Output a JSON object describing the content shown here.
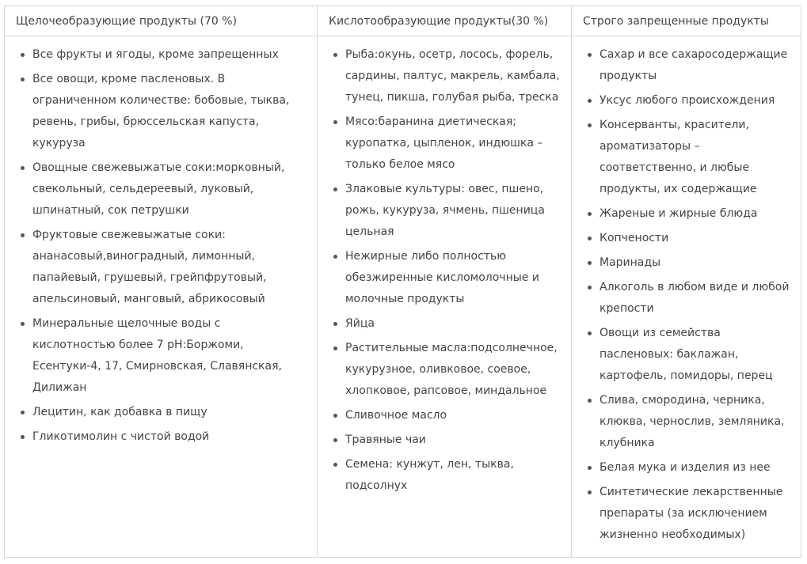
{
  "table": {
    "headers": [
      "Щелочеобразующие продукты (70 %)",
      "Кислотообразующие продукты(30 %)",
      "Строго запрещенные продукты"
    ],
    "columns": [
      [
        "Все фрукты и ягоды, кроме запрещенных",
        "Все овощи, кроме пасленовых. В ограниченном количестве: бобовые, тыква, ревень, грибы, брюссельская капуста, кукуруза",
        "Овощные свежевыжатые соки:морковный, свекольный, сельдереевый, луковый, шпинатный, сок петрушки",
        "Фруктовые свежевыжатые соки: ананасовый,виноградный, лимонный, папайевый, грушевый, грейпфрутовый, апельсиновый, манговый, абрикосовый",
        "Минеральные щелочные воды с кислотностью более 7 pH:Боржоми, Есентуки-4, 17, Смирновская, Славянская, Дилижан",
        "Лецитин, как добавка в пищу",
        "Гликотимолин с чистой водой"
      ],
      [
        "Рыба:окунь, осетр, лосось, форель, сардины, палтус, макрель, камбала, тунец, пикша, голубая рыба, треска",
        "Мясо:баранина диетическая; куропатка, цыпленок, индюшка – только белое мясо",
        "Злаковые культуры: овес, пшено, рожь, кукуруза, ячмень, пшеница цельная",
        "Нежирные либо полностью обезжиренные кисломолочные и молочные продукты",
        "Яйца",
        "Растительные масла:подсолнечное, кукурузное, оливковое, соевое, хлопковое, рапсовое, миндальное",
        "Сливочное масло",
        "Травяные чаи",
        "Семена: кунжут, лен, тыква, подсолнух"
      ],
      [
        "Сахар и все сахаросодержащие продукты",
        "Уксус любого происхождения",
        "Консерванты, красители, ароматизаторы – соответственно, и любые продукты, их содержащие",
        "Жареные и жирные блюда",
        "Копчености",
        "Маринады",
        "Алкоголь в любом виде и любой крепости",
        "Овощи из семейства пасленовых: баклажан, картофель, помидоры, перец",
        "Слива, смородина, черника, клюква, чернослив, земляника, клубника",
        "Белая мука и изделия из нее",
        "Синтетические лекарственные препараты (за исключением жизненно необходимых)"
      ]
    ]
  }
}
